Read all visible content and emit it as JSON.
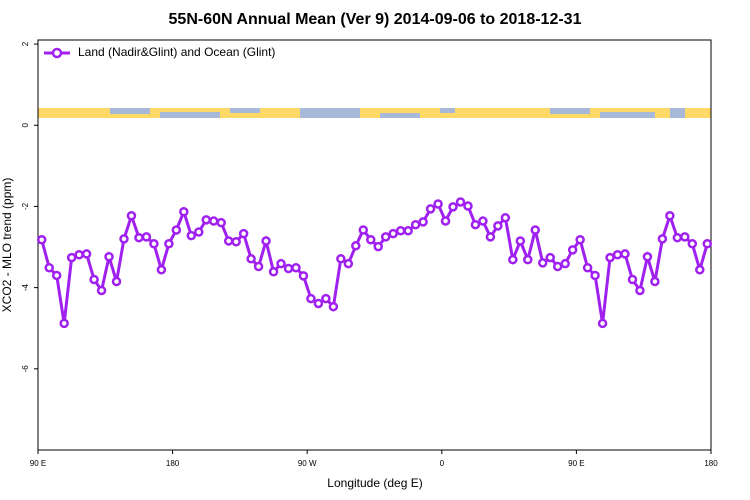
{
  "chart_data": {
    "type": "line",
    "title": "55N-60N Annual Mean (Ver 9)   2014-09-06 to 2018-12-31",
    "x_label": "Longitude (deg E)",
    "y_label": "XCO2 - MLO trend (ppm)",
    "xlim": [
      90,
      540
    ],
    "xticks": [
      {
        "value": 90,
        "label": "90 E"
      },
      180,
      {
        "value": 270,
        "label": "90 W"
      },
      {
        "value": 360,
        "label": "0"
      },
      {
        "value": 450,
        "label": "90 E"
      },
      {
        "value": 540,
        "label": "180"
      }
    ],
    "ylim": [
      -8,
      2.1
    ],
    "yticks": [
      2,
      0,
      -2,
      -4,
      -6
    ],
    "legend": "top-left",
    "x": [
      92.5,
      97.5,
      102.5,
      107.5,
      112.5,
      117.5,
      122.5,
      127.5,
      132.5,
      137.5,
      142.5,
      147.5,
      152.5,
      157.5,
      162.5,
      167.5,
      172.5,
      177.5,
      182.5,
      187.5,
      192.5,
      197.5,
      202.5,
      207.5,
      212.5,
      217.5,
      222.5,
      227.5,
      232.5,
      237.5,
      242.5,
      247.5,
      252.5,
      257.5,
      262.5,
      267.5,
      272.5,
      277.5,
      282.5,
      287.5,
      292.5,
      297.5,
      302.5,
      307.5,
      312.5,
      317.5,
      322.5,
      327.5,
      332.5,
      337.5,
      342.5,
      347.5,
      352.5,
      357.5,
      362.5,
      367.5,
      372.5,
      377.5,
      382.5,
      387.5,
      392.5,
      397.5,
      402.5,
      407.5,
      412.5,
      417.5,
      422.5,
      427.5,
      432.5,
      437.5,
      442.5,
      447.5,
      452.5,
      457.5,
      462.5,
      467.5,
      472.5,
      477.5,
      482.5,
      487.5,
      492.5,
      497.5,
      502.5,
      507.5,
      512.5,
      517.5,
      522.5,
      527.5,
      532.5,
      537.5
    ],
    "series": [
      {
        "name": "Land (Nadir&Glint) and Ocean (Glint)",
        "color": "#a020f0",
        "values": [
          -2.82,
          -3.51,
          -3.7,
          -4.88,
          -3.26,
          -3.19,
          -3.17,
          -3.8,
          -4.07,
          -3.24,
          -3.85,
          -2.8,
          -2.23,
          -2.77,
          -2.75,
          -2.92,
          -3.56,
          -2.92,
          -2.58,
          -2.13,
          -2.72,
          -2.63,
          -2.33,
          -2.36,
          -2.4,
          -2.85,
          -2.87,
          -2.67,
          -3.29,
          -3.48,
          -2.85,
          -3.61,
          -3.41,
          -3.53,
          -3.51,
          -3.71,
          -4.27,
          -4.39,
          -4.27,
          -4.47,
          -3.29,
          -3.41,
          -2.97,
          -2.58,
          -2.82,
          -2.99,
          -2.75,
          -2.67,
          -2.6,
          -2.6,
          -2.45,
          -2.38,
          -2.06,
          -1.94,
          -2.36,
          -2.01,
          -1.89,
          -1.99,
          -2.45,
          -2.36,
          -2.75,
          -2.48,
          -2.28,
          -3.31,
          -2.85,
          -3.31,
          -2.58,
          -3.39,
          -3.26,
          -3.48,
          -3.41,
          -3.07,
          -2.82,
          -3.51,
          -3.7,
          -4.88,
          -3.26,
          -3.19,
          -3.17,
          -3.8,
          -4.07,
          -3.24,
          -3.85,
          -2.8,
          -2.23,
          -2.77,
          -2.75,
          -2.92,
          -3.56,
          -2.92
        ]
      }
    ]
  }
}
